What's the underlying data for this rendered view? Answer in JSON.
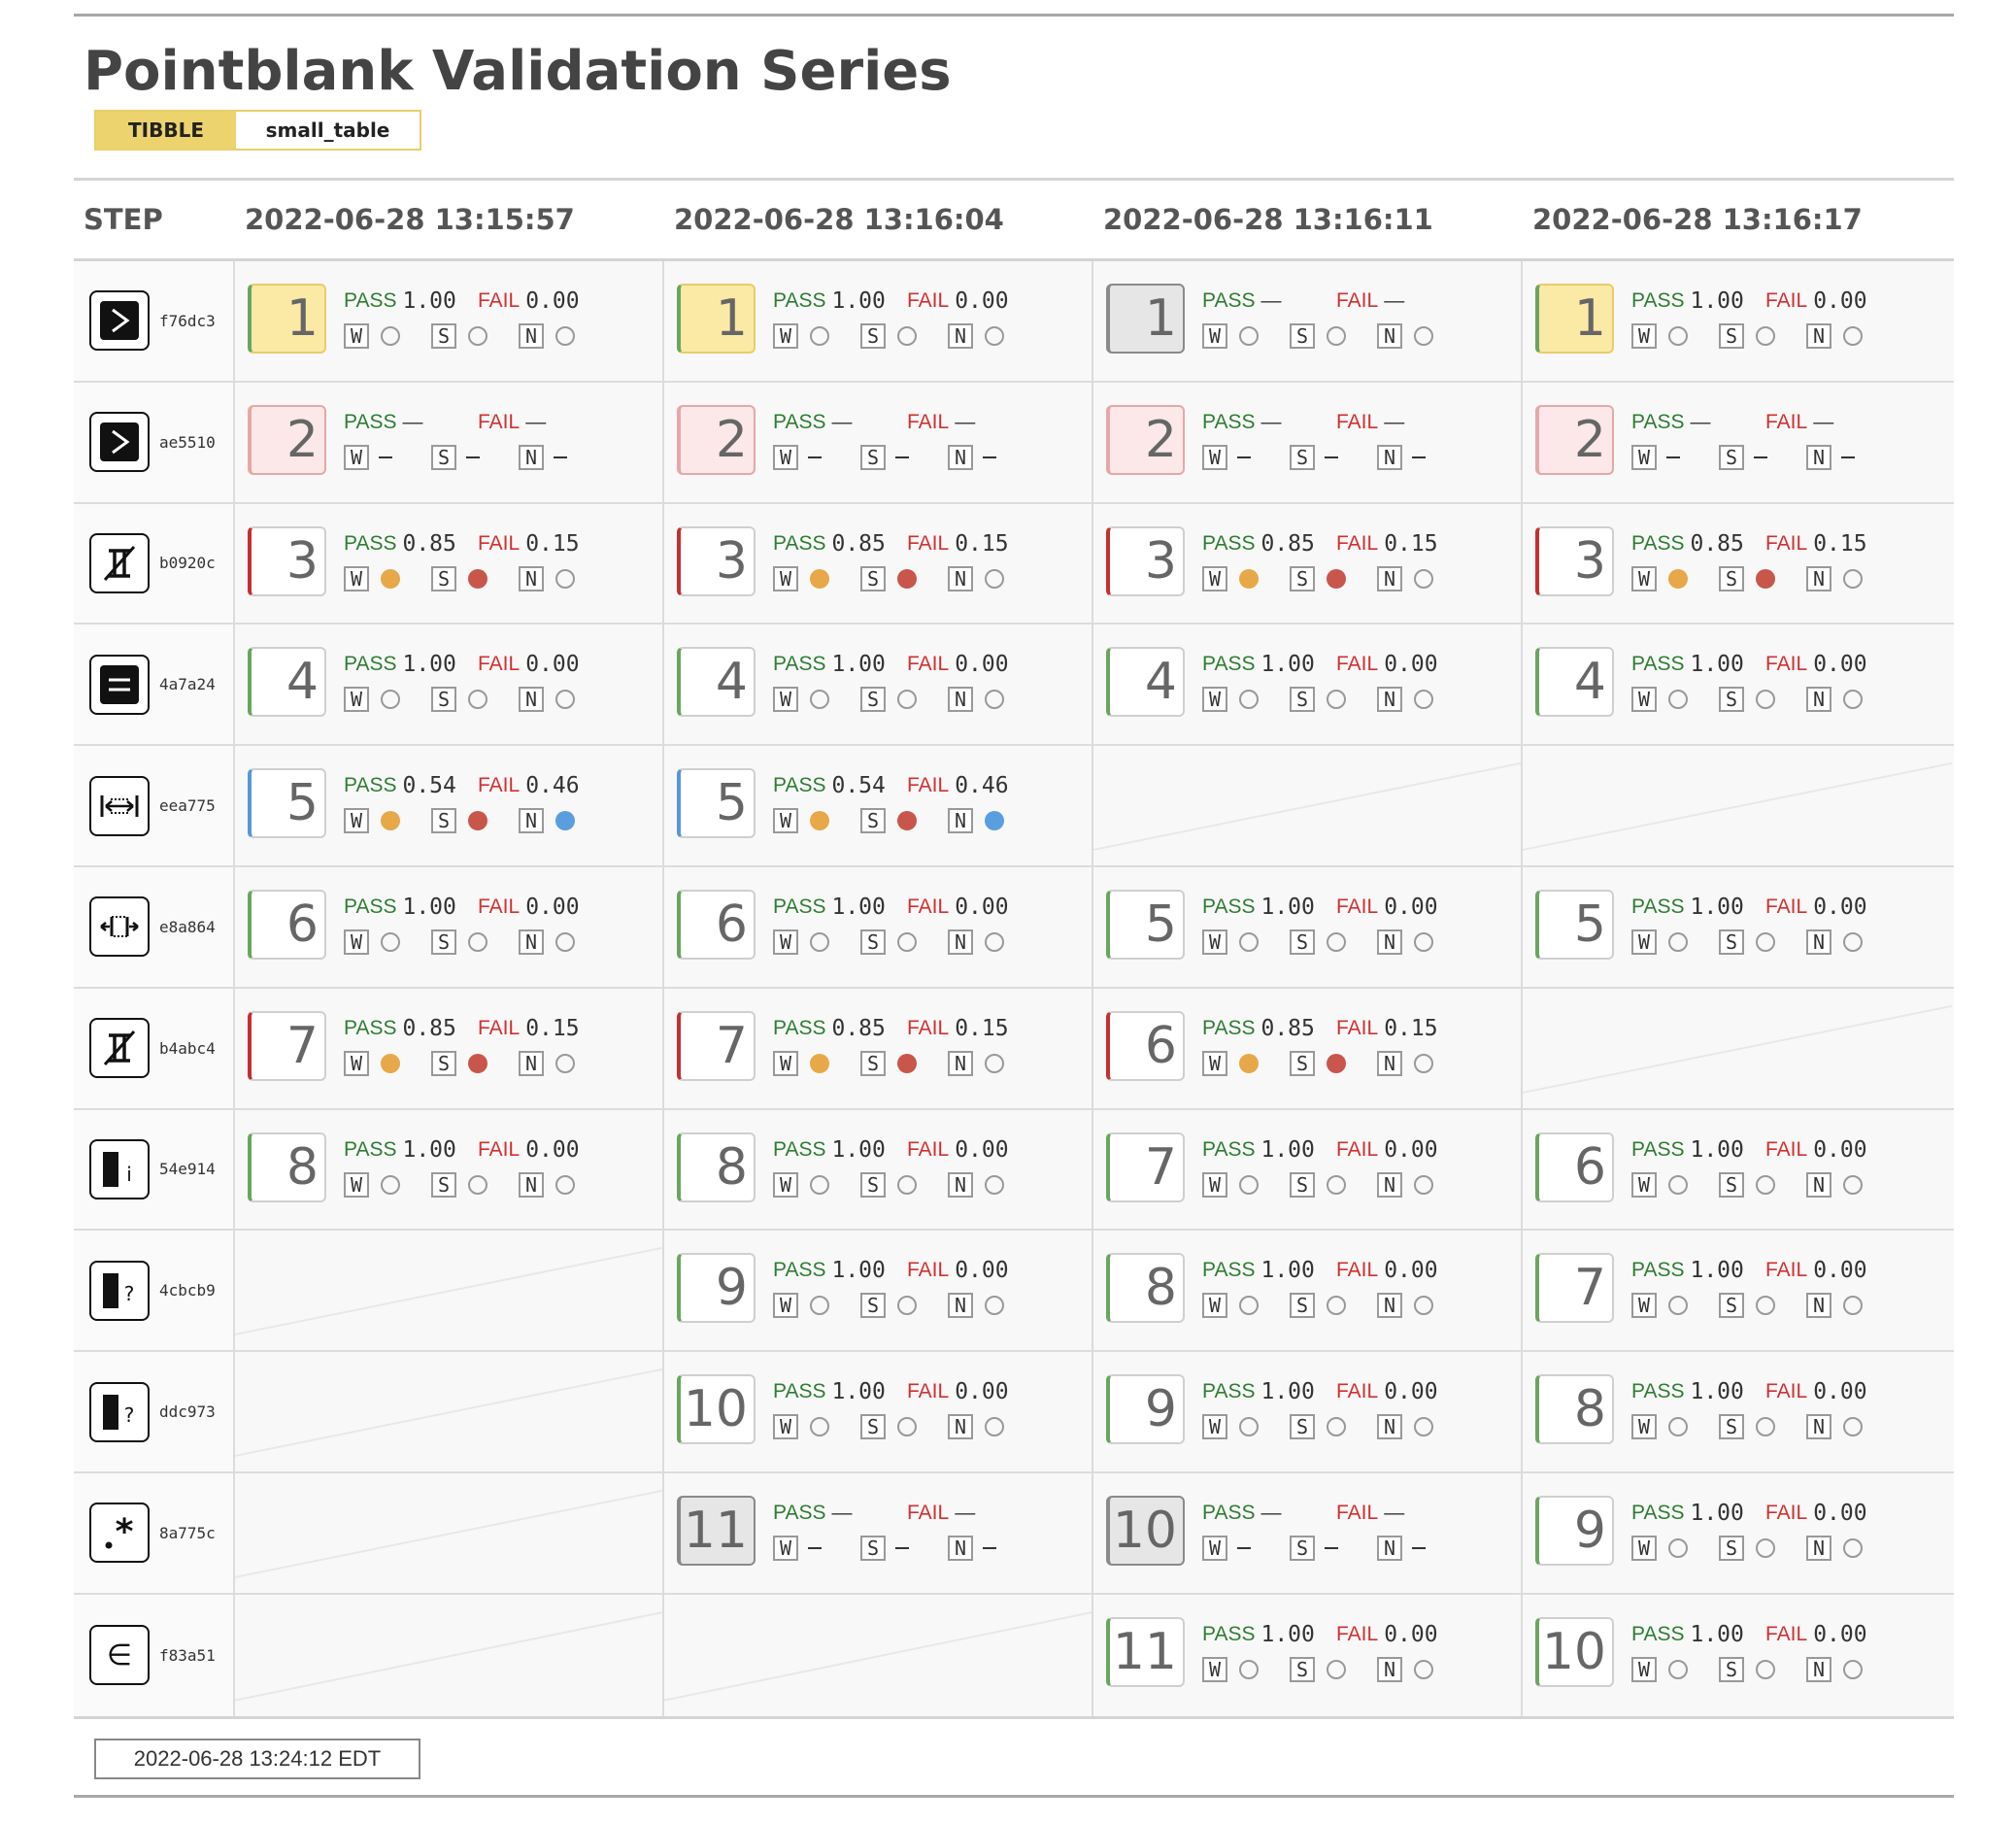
{
  "title": "Pointblank Validation Series",
  "badge": {
    "type": "TIBBLE",
    "table": "small_table"
  },
  "header": {
    "step_label": "STEP",
    "timestamps": [
      "2022-06-28 13:15:57",
      "2022-06-28 13:16:04",
      "2022-06-28 13:16:11",
      "2022-06-28 13:16:17"
    ]
  },
  "labels": {
    "pass": "PASS",
    "fail": "FAIL",
    "w": "W",
    "s": "S",
    "n": "N",
    "dash": "—"
  },
  "footer": {
    "timestamp": "2022-06-28 13:24:12 EDT"
  },
  "rows": [
    {
      "hash": "f76dc3",
      "icon": "col-vals-gt-icon",
      "cells": [
        {
          "n": "1",
          "style": "yellow",
          "pass": "1.00",
          "fail": "0.00",
          "w": "o",
          "s": "o",
          "ni": "o"
        },
        {
          "n": "1",
          "style": "yellow",
          "pass": "1.00",
          "fail": "0.00",
          "w": "o",
          "s": "o",
          "ni": "o"
        },
        {
          "n": "1",
          "style": "gray",
          "pass": "—",
          "fail": "—",
          "w": "o",
          "s": "o",
          "ni": "o"
        },
        {
          "n": "1",
          "style": "yellow",
          "pass": "1.00",
          "fail": "0.00",
          "w": "o",
          "s": "o",
          "ni": "o"
        }
      ]
    },
    {
      "hash": "ae5510",
      "icon": "col-vals-gt-icon",
      "cells": [
        {
          "n": "2",
          "style": "pink",
          "pass": "—",
          "fail": "—",
          "w": "d",
          "s": "d",
          "ni": "d"
        },
        {
          "n": "2",
          "style": "pink",
          "pass": "—",
          "fail": "—",
          "w": "d",
          "s": "d",
          "ni": "d"
        },
        {
          "n": "2",
          "style": "pink",
          "pass": "—",
          "fail": "—",
          "w": "d",
          "s": "d",
          "ni": "d"
        },
        {
          "n": "2",
          "style": "pink",
          "pass": "—",
          "fail": "—",
          "w": "d",
          "s": "d",
          "ni": "d"
        }
      ]
    },
    {
      "hash": "b0920c",
      "icon": "col-vals-not-between-icon",
      "cells": [
        {
          "n": "3",
          "style": "red",
          "pass": "0.85",
          "fail": "0.15",
          "w": "y",
          "s": "r",
          "ni": "o"
        },
        {
          "n": "3",
          "style": "red",
          "pass": "0.85",
          "fail": "0.15",
          "w": "y",
          "s": "r",
          "ni": "o"
        },
        {
          "n": "3",
          "style": "red",
          "pass": "0.85",
          "fail": "0.15",
          "w": "y",
          "s": "r",
          "ni": "o"
        },
        {
          "n": "3",
          "style": "red",
          "pass": "0.85",
          "fail": "0.15",
          "w": "y",
          "s": "r",
          "ni": "o"
        }
      ]
    },
    {
      "hash": "4a7a24",
      "icon": "col-vals-equal-icon",
      "cells": [
        {
          "n": "4",
          "style": "green",
          "pass": "1.00",
          "fail": "0.00",
          "w": "o",
          "s": "o",
          "ni": "o"
        },
        {
          "n": "4",
          "style": "green",
          "pass": "1.00",
          "fail": "0.00",
          "w": "o",
          "s": "o",
          "ni": "o"
        },
        {
          "n": "4",
          "style": "green",
          "pass": "1.00",
          "fail": "0.00",
          "w": "o",
          "s": "o",
          "ni": "o"
        },
        {
          "n": "4",
          "style": "green",
          "pass": "1.00",
          "fail": "0.00",
          "w": "o",
          "s": "o",
          "ni": "o"
        }
      ]
    },
    {
      "hash": "eea775",
      "icon": "col-vals-between-icon",
      "cells": [
        {
          "n": "5",
          "style": "blue",
          "pass": "0.54",
          "fail": "0.46",
          "w": "y",
          "s": "r",
          "ni": "b"
        },
        {
          "n": "5",
          "style": "blue",
          "pass": "0.54",
          "fail": "0.46",
          "w": "y",
          "s": "r",
          "ni": "b"
        },
        null,
        null
      ]
    },
    {
      "hash": "e8a864",
      "icon": "col-vals-outside-icon",
      "cells": [
        {
          "n": "6",
          "style": "green",
          "pass": "1.00",
          "fail": "0.00",
          "w": "o",
          "s": "o",
          "ni": "o"
        },
        {
          "n": "6",
          "style": "green",
          "pass": "1.00",
          "fail": "0.00",
          "w": "o",
          "s": "o",
          "ni": "o"
        },
        {
          "n": "5",
          "style": "green",
          "pass": "1.00",
          "fail": "0.00",
          "w": "o",
          "s": "o",
          "ni": "o"
        },
        {
          "n": "5",
          "style": "green",
          "pass": "1.00",
          "fail": "0.00",
          "w": "o",
          "s": "o",
          "ni": "o"
        }
      ]
    },
    {
      "hash": "b4abc4",
      "icon": "col-vals-not-between-icon",
      "cells": [
        {
          "n": "7",
          "style": "red",
          "pass": "0.85",
          "fail": "0.15",
          "w": "y",
          "s": "r",
          "ni": "o"
        },
        {
          "n": "7",
          "style": "red",
          "pass": "0.85",
          "fail": "0.15",
          "w": "y",
          "s": "r",
          "ni": "o"
        },
        {
          "n": "6",
          "style": "red",
          "pass": "0.85",
          "fail": "0.15",
          "w": "y",
          "s": "r",
          "ni": "o"
        },
        null
      ]
    },
    {
      "hash": "54e914",
      "icon": "col-is-integer-icon",
      "cells": [
        {
          "n": "8",
          "style": "green",
          "pass": "1.00",
          "fail": "0.00",
          "w": "o",
          "s": "o",
          "ni": "o"
        },
        {
          "n": "8",
          "style": "green",
          "pass": "1.00",
          "fail": "0.00",
          "w": "o",
          "s": "o",
          "ni": "o"
        },
        {
          "n": "7",
          "style": "green",
          "pass": "1.00",
          "fail": "0.00",
          "w": "o",
          "s": "o",
          "ni": "o"
        },
        {
          "n": "6",
          "style": "green",
          "pass": "1.00",
          "fail": "0.00",
          "w": "o",
          "s": "o",
          "ni": "o"
        }
      ]
    },
    {
      "hash": "4cbcb9",
      "icon": "col-vals-null-icon",
      "cells": [
        null,
        {
          "n": "9",
          "style": "green",
          "pass": "1.00",
          "fail": "0.00",
          "w": "o",
          "s": "o",
          "ni": "o"
        },
        {
          "n": "8",
          "style": "green",
          "pass": "1.00",
          "fail": "0.00",
          "w": "o",
          "s": "o",
          "ni": "o"
        },
        {
          "n": "7",
          "style": "green",
          "pass": "1.00",
          "fail": "0.00",
          "w": "o",
          "s": "o",
          "ni": "o"
        }
      ]
    },
    {
      "hash": "ddc973",
      "icon": "col-vals-null-icon",
      "cells": [
        null,
        {
          "n": "10",
          "style": "green",
          "pass": "1.00",
          "fail": "0.00",
          "w": "o",
          "s": "o",
          "ni": "o"
        },
        {
          "n": "9",
          "style": "green",
          "pass": "1.00",
          "fail": "0.00",
          "w": "o",
          "s": "o",
          "ni": "o"
        },
        {
          "n": "8",
          "style": "green",
          "pass": "1.00",
          "fail": "0.00",
          "w": "o",
          "s": "o",
          "ni": "o"
        }
      ]
    },
    {
      "hash": "8a775c",
      "icon": "col-vals-regex-icon",
      "cells": [
        null,
        {
          "n": "11",
          "style": "gray",
          "pass": "—",
          "fail": "—",
          "w": "d",
          "s": "d",
          "ni": "d"
        },
        {
          "n": "10",
          "style": "gray",
          "pass": "—",
          "fail": "—",
          "w": "d",
          "s": "d",
          "ni": "d"
        },
        {
          "n": "9",
          "style": "green",
          "pass": "1.00",
          "fail": "0.00",
          "w": "o",
          "s": "o",
          "ni": "o"
        }
      ]
    },
    {
      "hash": "f83a51",
      "icon": "col-vals-in-set-icon",
      "cells": [
        null,
        null,
        {
          "n": "11",
          "style": "green",
          "pass": "1.00",
          "fail": "0.00",
          "w": "o",
          "s": "o",
          "ni": "o"
        },
        {
          "n": "10",
          "style": "green",
          "pass": "1.00",
          "fail": "0.00",
          "w": "o",
          "s": "o",
          "ni": "o"
        }
      ]
    }
  ]
}
